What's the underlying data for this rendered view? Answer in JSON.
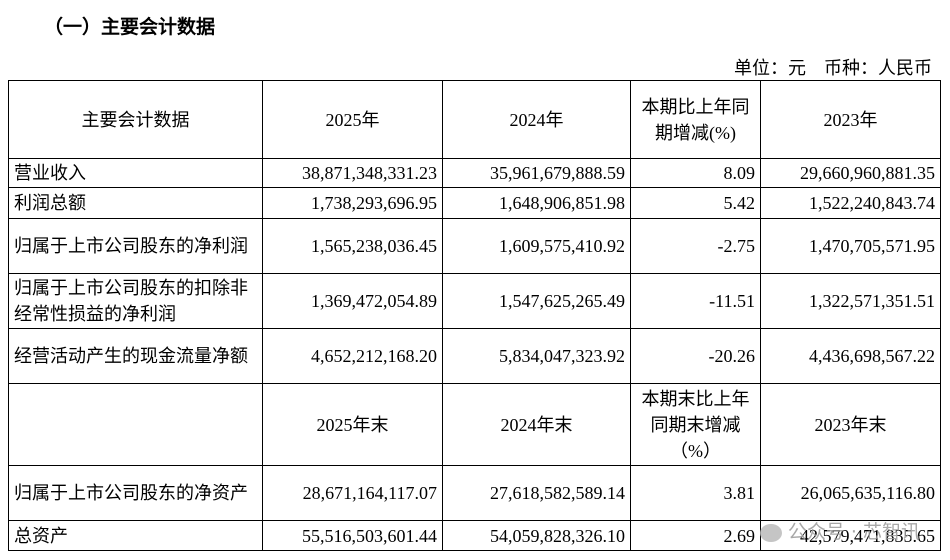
{
  "section_title": "（一）主要会计数据",
  "unit_line": "单位：元　币种：人民币",
  "table": {
    "header": [
      "主要会计数据",
      "2025年",
      "2024年",
      "本期比上年同期增减(%)",
      "2023年"
    ],
    "rows": [
      [
        "营业收入",
        "38,871,348,331.23",
        "35,961,679,888.59",
        "8.09",
        "29,660,960,881.35"
      ],
      [
        "利润总额",
        "1,738,293,696.95",
        "1,648,906,851.98",
        "5.42",
        "1,522,240,843.74"
      ],
      [
        "归属于上市公司股东的净利润",
        "1,565,238,036.45",
        "1,609,575,410.92",
        "-2.75",
        "1,470,705,571.95"
      ],
      [
        "归属于上市公司股东的扣除非经常性损益的净利润",
        "1,369,472,054.89",
        "1,547,625,265.49",
        "-11.51",
        "1,322,571,351.51"
      ],
      [
        "经营活动产生的现金流量净额",
        "4,652,212,168.20",
        "5,834,047,323.92",
        "-20.26",
        "4,436,698,567.22"
      ]
    ],
    "header2": [
      "2025年末",
      "2024年末",
      "本期末比上年同期末增减（%）",
      "2023年末"
    ],
    "rows2": [
      [
        "归属于上市公司股东的净资产",
        "28,671,164,117.07",
        "27,618,582,589.14",
        "3.81",
        "26,065,635,116.80"
      ],
      [
        "总资产",
        "55,516,503,601.44",
        "54,059,828,326.10",
        "2.69",
        "42,579,471,835.65"
      ]
    ]
  },
  "watermark": "公众号 · 芯智讯"
}
